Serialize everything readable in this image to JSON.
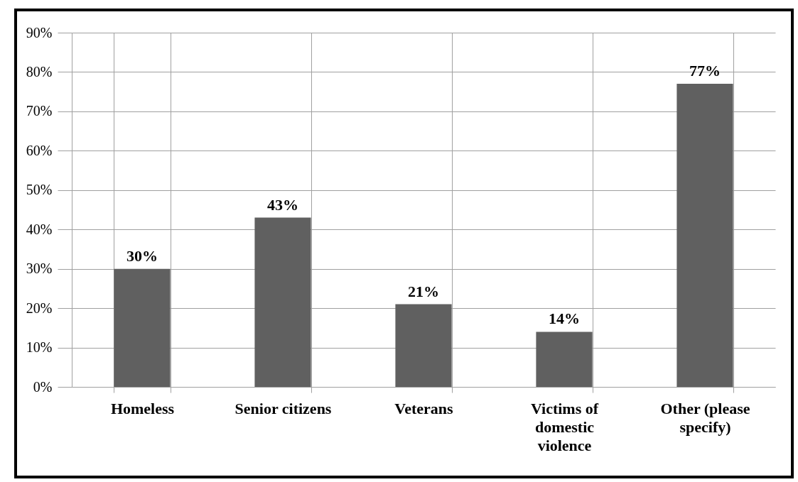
{
  "chart_data": {
    "type": "bar",
    "categories": [
      "Homeless",
      "Senior citizens",
      "Veterans",
      "Victims of domestic violence",
      "Other (please specify)"
    ],
    "values": [
      30,
      43,
      21,
      14,
      77
    ],
    "value_labels": [
      "30%",
      "43%",
      "21%",
      "14%",
      "77%"
    ],
    "color": "#606060",
    "ylim": [
      0,
      90
    ],
    "yticks": [
      {
        "value": 0,
        "label": "0%"
      },
      {
        "value": 10,
        "label": "10%"
      },
      {
        "value": 20,
        "label": "20%"
      },
      {
        "value": 30,
        "label": "30%"
      },
      {
        "value": 40,
        "label": "40%"
      },
      {
        "value": 50,
        "label": "50%"
      },
      {
        "value": 60,
        "label": "60%"
      },
      {
        "value": 70,
        "label": "70%"
      },
      {
        "value": 80,
        "label": "80%"
      },
      {
        "value": 90,
        "label": "90%"
      }
    ],
    "grid": true
  }
}
